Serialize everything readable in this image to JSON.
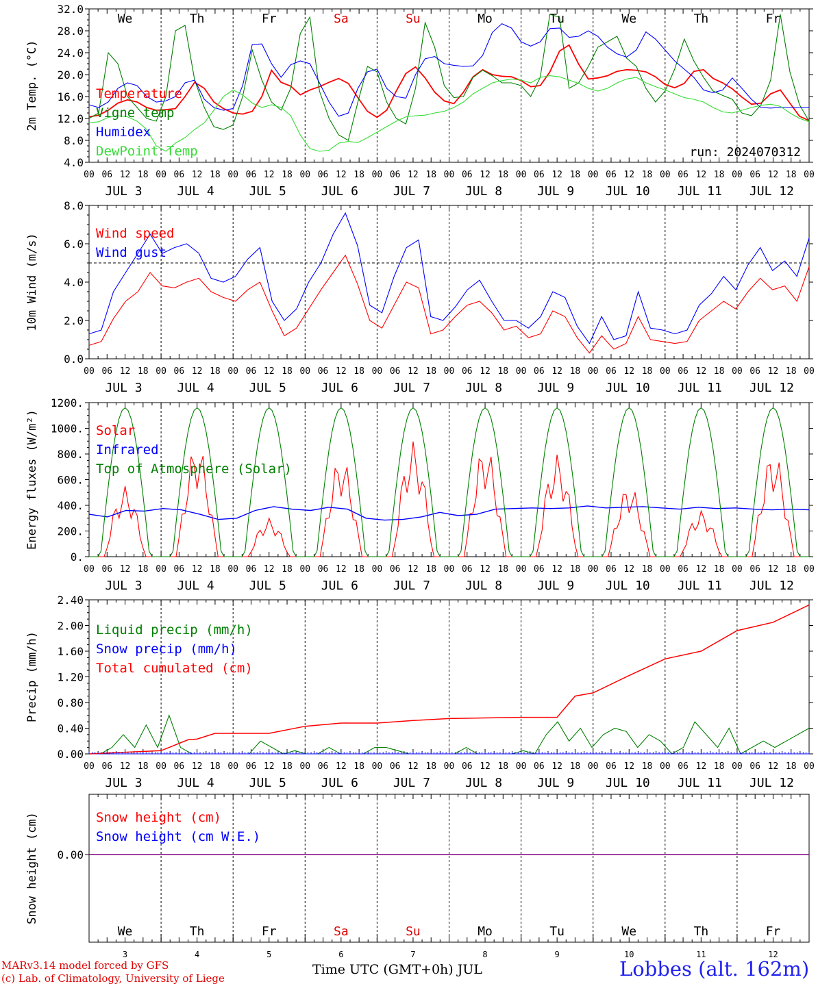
{
  "run_label": "run: 2024070312",
  "station": "Lobbes (alt. 162m)",
  "credits": [
    "MARv3.14 model forced by GFS",
    "(c) Lab. of Climatology, University of Liege"
  ],
  "x_axis_title": "Time UTC (GMT+0h) JUL",
  "hour_ticks": [
    "00",
    "06",
    "12",
    "18"
  ],
  "final_tick": "00",
  "days": [
    "JUL  3",
    "JUL  4",
    "JUL  5",
    "JUL  6",
    "JUL  7",
    "JUL  8",
    "JUL  9",
    "JUL 10",
    "JUL 11",
    "JUL 12"
  ],
  "day_numbers": [
    "3",
    "4",
    "5",
    "6",
    "7",
    "8",
    "9",
    "10",
    "11",
    "12"
  ],
  "weekdays": [
    "We",
    "Th",
    "Fr",
    "Sa",
    "Su",
    "Mo",
    "Tu",
    "We",
    "Th",
    "Fr"
  ],
  "weekend_color": "#e00000",
  "weekend_index": [
    3,
    4
  ],
  "colors": {
    "red": "#ff0000",
    "green": "#008000",
    "blue": "#0000ff",
    "lightgreen": "#33dd33",
    "purple": "#800080"
  },
  "chart_data": [
    {
      "type": "line",
      "ylabel": "2m Temp. (°C)",
      "ylim": [
        4,
        32
      ],
      "yticks": [
        "4.0",
        "8.0",
        "12.0",
        "16.0",
        "20.0",
        "24.0",
        "28.0",
        "32.0"
      ],
      "x_unit": "hours since JUL 3 00 UTC",
      "x_step_hours": 3,
      "legend_placement": "left",
      "series": [
        {
          "name": "Temperature",
          "color": "#ff0000",
          "values": [
            12.3,
            12.6,
            13.5,
            14.8,
            15.4,
            15.0,
            14.0,
            13.5,
            13.6,
            13.8,
            16.0,
            18.6,
            17.5,
            15.0,
            13.8,
            13.0,
            12.8,
            13.3,
            16.0,
            20.8,
            18.6,
            17.9,
            16.3,
            17.2,
            17.8,
            18.6,
            19.3,
            18.4,
            15.8,
            13.3,
            12.2,
            13.5,
            17.0,
            20.2,
            21.4,
            19.4,
            16.8,
            15.2,
            14.7,
            16.8,
            19.6,
            20.9,
            20.0,
            19.7,
            19.6,
            18.9,
            17.8,
            18.0,
            20.5,
            24.3,
            25.4,
            21.9,
            19.2,
            19.4,
            19.8,
            20.6,
            20.9,
            20.8,
            20.5,
            19.6,
            18.2,
            17.6,
            18.4,
            20.6,
            20.9,
            19.3,
            18.5,
            17.4,
            15.9,
            14.6,
            14.8,
            16.5,
            17.2,
            14.8,
            12.4,
            11.6
          ]
        },
        {
          "name": "Vigne temp",
          "color": "#008000",
          "values": [
            12.0,
            13.0,
            24.0,
            22.0,
            16.0,
            14.0,
            12.0,
            11.5,
            16.0,
            28.0,
            29.0,
            19.0,
            14.0,
            10.5,
            10.0,
            10.8,
            16.0,
            24.5,
            19.0,
            15.0,
            13.5,
            17.5,
            27.5,
            30.5,
            17.0,
            12.0,
            9.0,
            8.0,
            15.0,
            21.5,
            20.5,
            15.0,
            12.0,
            11.0,
            17.5,
            29.5,
            25.0,
            18.0,
            15.8,
            16.0,
            19.5,
            20.8,
            19.8,
            18.5,
            18.5,
            18.0,
            16.0,
            19.5,
            31.0,
            30.5,
            17.5,
            18.5,
            21.5,
            25.0,
            26.0,
            27.0,
            23.0,
            21.5,
            17.5,
            15.0,
            17.0,
            21.0,
            26.5,
            22.5,
            19.5,
            17.0,
            16.2,
            15.5,
            13.0,
            12.5,
            14.5,
            19.0,
            31.0,
            20.5,
            14.5,
            11.5
          ]
        },
        {
          "name": "Humidex",
          "color": "#0000ff",
          "values": [
            14.5,
            14.0,
            15.0,
            17.5,
            18.5,
            18.0,
            16.0,
            15.0,
            15.2,
            16.0,
            18.5,
            19.0,
            15.5,
            14.0,
            13.5,
            13.8,
            18.0,
            25.5,
            25.6,
            22.0,
            19.5,
            21.8,
            22.5,
            22.0,
            18.5,
            15.0,
            12.4,
            13.0,
            17.5,
            20.5,
            21.0,
            17.5,
            16.0,
            15.7,
            20.0,
            22.9,
            23.3,
            22.0,
            21.7,
            21.5,
            21.6,
            23.5,
            27.7,
            29.3,
            28.5,
            26.0,
            25.2,
            26.0,
            28.4,
            28.5,
            26.8,
            27.0,
            28.0,
            27.0,
            25.0,
            23.8,
            23.2,
            24.5,
            27.8,
            26.5,
            24.5,
            22.5,
            21.0,
            19.5,
            17.2,
            16.7,
            17.2,
            19.4,
            17.5,
            15.5,
            14.0,
            13.9,
            14.0,
            14.0,
            14.0,
            14.0
          ]
        },
        {
          "name": "DewPoint Temp",
          "color": "#33dd33",
          "values": [
            11.2,
            11.4,
            12.2,
            12.5,
            12.3,
            11.5,
            10.0,
            7.0,
            6.0,
            7.5,
            8.5,
            10.0,
            11.2,
            13.5,
            16.0,
            17.2,
            16.3,
            14.8,
            14.0,
            14.5,
            14.0,
            12.5,
            9.0,
            6.5,
            6.0,
            6.2,
            7.5,
            7.8,
            7.6,
            8.5,
            9.5,
            10.5,
            11.5,
            12.3,
            12.5,
            12.6,
            13.0,
            13.3,
            14.0,
            15.0,
            16.5,
            17.5,
            18.5,
            18.9,
            19.2,
            19.0,
            18.5,
            19.5,
            19.8,
            19.6,
            19.0,
            18.4,
            17.5,
            17.0,
            17.5,
            18.5,
            19.2,
            19.5,
            18.5,
            17.8,
            17.2,
            16.5,
            15.8,
            15.5,
            15.0,
            14.0,
            13.2,
            13.0,
            13.5,
            14.0,
            14.4,
            14.6,
            14.2,
            13.0,
            12.0,
            11.4
          ]
        }
      ]
    },
    {
      "type": "line",
      "ylabel": "10m Wind (m/s)",
      "ylim": [
        0,
        8
      ],
      "yticks": [
        "0.0",
        "2.0",
        "4.0",
        "6.0",
        "8.0"
      ],
      "x_unit": "hours since JUL 3 00 UTC",
      "x_step_hours": 3,
      "reference_line": 5.0,
      "legend_placement": "left",
      "series": [
        {
          "name": "Wind speed",
          "color": "#ff0000",
          "values": [
            0.7,
            0.9,
            2.1,
            3.0,
            3.5,
            4.5,
            3.8,
            3.7,
            4.0,
            4.2,
            3.5,
            3.2,
            3.0,
            3.6,
            4.0,
            2.5,
            1.2,
            1.6,
            2.6,
            3.6,
            4.5,
            5.4,
            3.9,
            2.0,
            1.6,
            2.8,
            4.0,
            3.7,
            1.3,
            1.5,
            2.2,
            2.8,
            3.0,
            2.4,
            1.5,
            1.7,
            1.1,
            1.3,
            2.5,
            2.2,
            1.1,
            0.3,
            1.2,
            0.5,
            0.8,
            2.2,
            1.0,
            0.9,
            0.8,
            0.9,
            2.0,
            2.5,
            3.0,
            2.6,
            3.5,
            4.2,
            3.6,
            3.8,
            3.0,
            4.8
          ]
        },
        {
          "name": "Wind gust",
          "color": "#0000ff",
          "values": [
            1.3,
            1.5,
            3.5,
            4.5,
            5.5,
            6.5,
            5.5,
            5.8,
            6.0,
            5.5,
            4.2,
            4.0,
            4.3,
            5.2,
            5.8,
            3.0,
            2.0,
            2.6,
            4.0,
            5.0,
            6.5,
            7.6,
            5.9,
            2.8,
            2.4,
            4.3,
            5.8,
            6.2,
            2.2,
            2.0,
            2.7,
            3.6,
            4.1,
            3.0,
            2.0,
            2.0,
            1.6,
            2.2,
            3.5,
            3.2,
            1.7,
            0.8,
            2.2,
            1.0,
            1.2,
            3.5,
            1.6,
            1.5,
            1.3,
            1.5,
            2.8,
            3.4,
            4.3,
            3.6,
            4.9,
            5.8,
            4.6,
            5.1,
            4.3,
            6.3
          ]
        }
      ]
    },
    {
      "type": "line",
      "ylabel": "Energy fluxes (W/m²)",
      "ylim": [
        0,
        1200
      ],
      "yticks": [
        "0.",
        "200.",
        "400.",
        "600.",
        "800.",
        "1000.",
        "1200."
      ],
      "x_unit": "hours since JUL 3 00 UTC",
      "legend_placement": "left",
      "daily_peak_utc_hours": 12,
      "series": [
        {
          "name": "Solar",
          "color": "#ff0000",
          "daily_peaks": [
            550,
            880,
            300,
            780,
            900,
            870,
            800,
            560,
            360,
            820
          ]
        },
        {
          "name": "Infrared",
          "color": "#0000ff",
          "values": [
            330,
            310,
            360,
            355,
            375,
            365,
            330,
            290,
            300,
            360,
            390,
            370,
            360,
            385,
            370,
            300,
            285,
            290,
            310,
            345,
            320,
            330,
            370,
            375,
            380,
            375,
            380,
            395,
            380,
            385,
            390,
            380,
            370,
            385,
            375,
            380,
            370,
            365,
            370,
            365
          ]
        },
        {
          "name": "Top of Atmosphere (Solar)",
          "color": "#008000",
          "daily_peak": 1160
        }
      ]
    },
    {
      "type": "line",
      "ylabel": "Precip (mm/h)",
      "ylim": [
        0,
        2.4
      ],
      "yticks": [
        "0.00",
        "0.40",
        "0.80",
        "1.20",
        "1.60",
        "2.00",
        "2.40"
      ],
      "x_unit": "hours since JUL 3 00 UTC",
      "legend_placement": "left",
      "series": [
        {
          "name": "Liquid precip (mm/h)",
          "color": "#008000",
          "values": [
            0,
            0,
            0.1,
            0.3,
            0.1,
            0.45,
            0.1,
            0.6,
            0.1,
            0,
            0,
            0,
            0,
            0,
            0,
            0.2,
            0.1,
            0,
            0.05,
            0,
            0,
            0.1,
            0,
            0,
            0,
            0.1,
            0.1,
            0.05,
            0,
            0,
            0,
            0,
            0,
            0.1,
            0,
            0,
            0,
            0,
            0.05,
            0,
            0.3,
            0.5,
            0.2,
            0.4,
            0.1,
            0.3,
            0.4,
            0.35,
            0.1,
            0.3,
            0.2,
            0,
            0.1,
            0.5,
            0.3,
            0.1,
            0.4,
            0,
            0.1,
            0.2,
            0.1,
            0.2,
            0.3,
            0.4
          ]
        },
        {
          "name": "Snow precip (mm/h)",
          "color": "#0000ff",
          "values": [
            0,
            0,
            0,
            0,
            0,
            0,
            0,
            0,
            0,
            0
          ]
        },
        {
          "name": "Total cumulated (cm)",
          "color": "#ff0000",
          "x": [
            0,
            24,
            33,
            36,
            42,
            48,
            60,
            72,
            84,
            96,
            108,
            120,
            144,
            156,
            162,
            168,
            180,
            192,
            204,
            216,
            228,
            240
          ],
          "values": [
            0,
            0.05,
            0.22,
            0.23,
            0.32,
            0.32,
            0.32,
            0.43,
            0.48,
            0.48,
            0.52,
            0.55,
            0.57,
            0.57,
            0.9,
            0.95,
            1.22,
            1.48,
            1.6,
            1.92,
            2.05,
            2.32
          ]
        }
      ]
    },
    {
      "type": "line",
      "ylabel": "Snow height (cm)",
      "yticks": [
        "0.00"
      ],
      "x_unit": "hours since JUL 3 00 UTC",
      "legend_placement": "left",
      "series": [
        {
          "name": "Snow height (cm)",
          "color": "#ff0000",
          "values": [
            0,
            0
          ]
        },
        {
          "name": "Snow height (cm W.E.)",
          "color": "#0000ff",
          "values": [
            0,
            0
          ]
        }
      ]
    }
  ]
}
